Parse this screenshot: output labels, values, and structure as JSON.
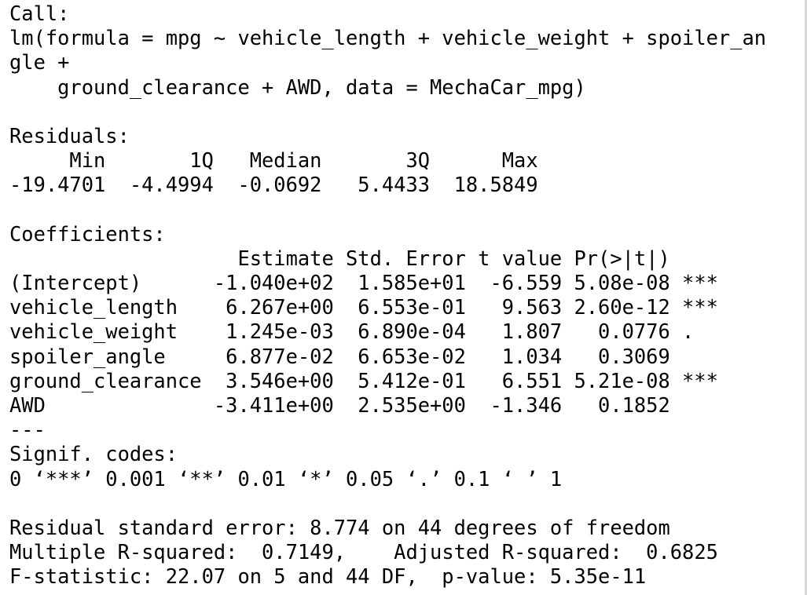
{
  "console": {
    "lines": [
      "Call:",
      "lm(formula = mpg ~ vehicle_length + vehicle_weight + spoiler_an",
      "gle +",
      "    ground_clearance + AWD, data = MechaCar_mpg)",
      "",
      "Residuals:",
      "     Min       1Q   Median       3Q      Max ",
      "-19.4701  -4.4994  -0.0692   5.4433  18.5849 ",
      "",
      "Coefficients:",
      "                   Estimate Std. Error t value Pr(>|t|)    ",
      "(Intercept)      -1.040e+02  1.585e+01  -6.559 5.08e-08 ***",
      "vehicle_length    6.267e+00  6.553e-01   9.563 2.60e-12 ***",
      "vehicle_weight    1.245e-03  6.890e-04   1.807   0.0776 .  ",
      "spoiler_angle     6.877e-02  6.653e-02   1.034   0.3069    ",
      "ground_clearance  3.546e+00  5.412e-01   6.551 5.21e-08 ***",
      "AWD              -3.411e+00  2.535e+00  -1.346   0.1852    ",
      "---",
      "Signif. codes:  ",
      "0 ‘***’ 0.001 ‘**’ 0.01 ‘*’ 0.05 ‘.’ 0.1 ‘ ’ 1",
      "",
      "Residual standard error: 8.774 on 44 degrees of freedom",
      "Multiple R-squared:  0.7149,\tAdjusted R-squared:  0.6825 ",
      "F-statistic: 22.07 on 5 and 44 DF,  p-value: 5.35e-11"
    ]
  }
}
